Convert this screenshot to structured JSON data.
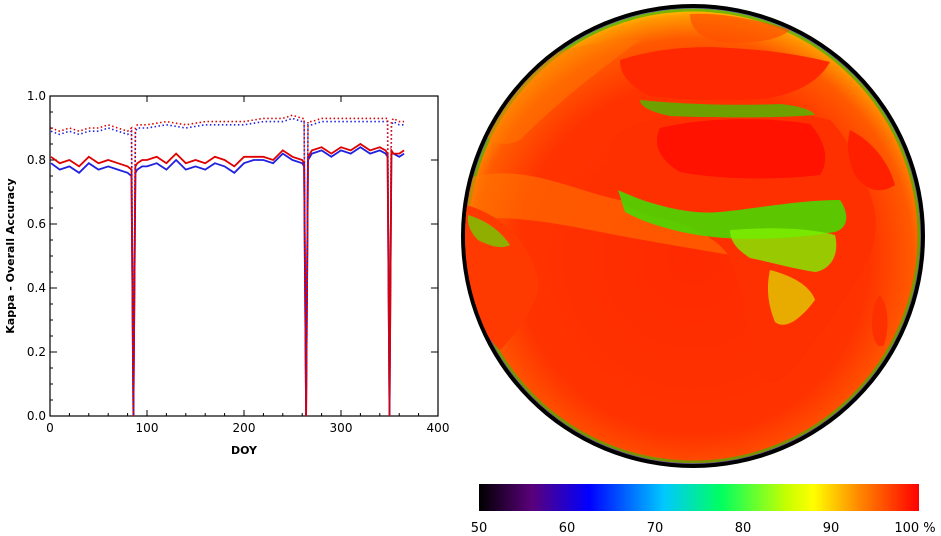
{
  "chart_data": [
    {
      "type": "line",
      "title": "",
      "xlabel": "DOY",
      "ylabel": "Kappa  -  Overall Accuracy",
      "xlim": [
        0,
        400
      ],
      "ylim": [
        0.0,
        1.0
      ],
      "xticks": [
        "0",
        "100",
        "200",
        "300",
        "400"
      ],
      "yticks": [
        "0.0",
        "0.2",
        "0.4",
        "0.6",
        "0.8",
        "1.0"
      ],
      "grid": false,
      "legend": "none",
      "series": [
        {
          "line_style": "solid",
          "color": "#2020e0",
          "x": [
            1,
            10,
            20,
            30,
            40,
            50,
            60,
            70,
            80,
            84,
            86,
            88,
            90,
            95,
            100,
            110,
            120,
            130,
            140,
            150,
            160,
            170,
            180,
            190,
            200,
            210,
            220,
            230,
            240,
            250,
            260,
            262,
            264,
            266,
            268,
            270,
            280,
            290,
            300,
            310,
            320,
            330,
            340,
            346,
            348,
            350,
            352,
            354,
            360,
            365
          ],
          "y": [
            0.79,
            0.77,
            0.78,
            0.76,
            0.79,
            0.77,
            0.78,
            0.77,
            0.76,
            0.75,
            0.0,
            0.76,
            0.77,
            0.78,
            0.78,
            0.79,
            0.77,
            0.8,
            0.77,
            0.78,
            0.77,
            0.79,
            0.78,
            0.76,
            0.79,
            0.8,
            0.8,
            0.79,
            0.82,
            0.8,
            0.79,
            0.78,
            0.0,
            0.8,
            0.81,
            0.82,
            0.83,
            0.81,
            0.83,
            0.82,
            0.84,
            0.82,
            0.83,
            0.82,
            0.81,
            0.0,
            0.82,
            0.82,
            0.81,
            0.82
          ]
        },
        {
          "line_style": "solid",
          "color": "#e00000",
          "x": [
            1,
            10,
            20,
            30,
            40,
            50,
            60,
            70,
            80,
            84,
            86,
            88,
            90,
            95,
            100,
            110,
            120,
            130,
            140,
            150,
            160,
            170,
            180,
            190,
            200,
            210,
            220,
            230,
            240,
            250,
            260,
            262,
            264,
            266,
            268,
            270,
            280,
            290,
            300,
            310,
            320,
            330,
            340,
            346,
            348,
            350,
            352,
            354,
            360,
            365
          ],
          "y": [
            0.81,
            0.79,
            0.8,
            0.78,
            0.81,
            0.79,
            0.8,
            0.79,
            0.78,
            0.77,
            0.0,
            0.78,
            0.79,
            0.8,
            0.8,
            0.81,
            0.79,
            0.82,
            0.79,
            0.8,
            0.79,
            0.81,
            0.8,
            0.78,
            0.81,
            0.81,
            0.81,
            0.8,
            0.83,
            0.81,
            0.8,
            0.79,
            0.0,
            0.81,
            0.82,
            0.83,
            0.84,
            0.82,
            0.84,
            0.83,
            0.85,
            0.83,
            0.84,
            0.83,
            0.82,
            0.0,
            0.83,
            0.82,
            0.82,
            0.83
          ]
        },
        {
          "line_style": "dotted",
          "color": "#2020e0",
          "x": [
            1,
            10,
            20,
            30,
            40,
            50,
            60,
            70,
            80,
            84,
            86,
            88,
            90,
            100,
            120,
            140,
            160,
            180,
            200,
            220,
            240,
            250,
            260,
            262,
            264,
            266,
            268,
            270,
            280,
            300,
            320,
            340,
            346,
            348,
            350,
            352,
            354,
            360,
            365
          ],
          "y": [
            0.89,
            0.88,
            0.89,
            0.88,
            0.89,
            0.89,
            0.9,
            0.89,
            0.88,
            0.89,
            0.0,
            0.89,
            0.9,
            0.9,
            0.91,
            0.9,
            0.91,
            0.91,
            0.91,
            0.92,
            0.92,
            0.93,
            0.92,
            0.92,
            0.0,
            0.91,
            0.91,
            0.91,
            0.92,
            0.92,
            0.92,
            0.92,
            0.92,
            0.92,
            0.0,
            0.91,
            0.92,
            0.91,
            0.91
          ]
        },
        {
          "line_style": "dotted",
          "color": "#e00000",
          "x": [
            1,
            10,
            20,
            30,
            40,
            50,
            60,
            70,
            80,
            84,
            86,
            88,
            90,
            100,
            120,
            140,
            160,
            180,
            200,
            220,
            240,
            250,
            260,
            262,
            264,
            266,
            268,
            270,
            280,
            300,
            320,
            340,
            346,
            348,
            350,
            352,
            354,
            360,
            365
          ],
          "y": [
            0.9,
            0.89,
            0.9,
            0.89,
            0.9,
            0.9,
            0.91,
            0.9,
            0.89,
            0.9,
            0.0,
            0.9,
            0.91,
            0.91,
            0.92,
            0.91,
            0.92,
            0.92,
            0.92,
            0.93,
            0.93,
            0.94,
            0.93,
            0.93,
            0.0,
            0.92,
            0.92,
            0.92,
            0.93,
            0.93,
            0.93,
            0.93,
            0.93,
            0.93,
            0.0,
            0.92,
            0.93,
            0.92,
            0.92
          ]
        }
      ]
    },
    {
      "type": "heatmap",
      "colorbar": {
        "min": 50,
        "max": 100,
        "ticks": [
          "50",
          "60",
          "70",
          "80",
          "90",
          "100 %"
        ],
        "colors": [
          "#000000",
          "#5a007a",
          "#0000ff",
          "#00c8ff",
          "#00ff60",
          "#c8ff00",
          "#ffff00",
          "#ff8c00",
          "#ff0000"
        ]
      }
    }
  ]
}
